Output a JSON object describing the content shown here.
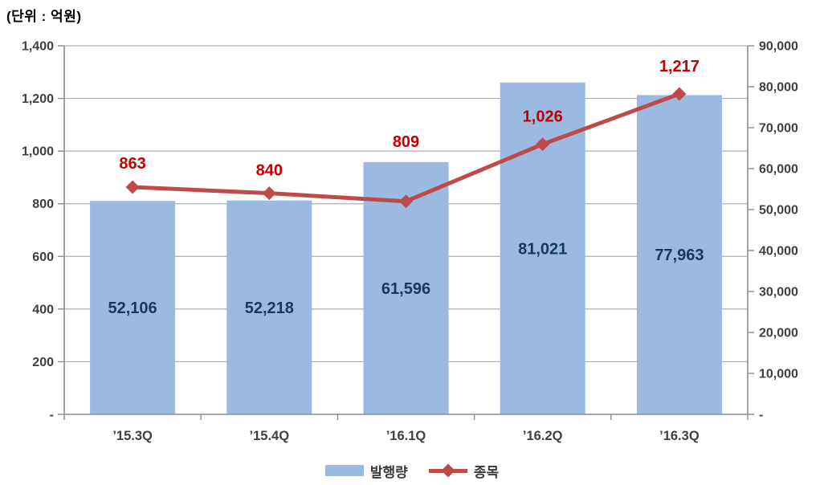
{
  "unit_label": "(단위 : 억원)",
  "colors": {
    "bar_fill": "#9ABAE2",
    "bar_label": "#17375E",
    "line": "#BE4B48",
    "line_label": "#C00000",
    "axis_line": "#8C8C8C",
    "gridline": "#AFAFAF",
    "axis_text": "#404040"
  },
  "chart_data": {
    "type": "combo",
    "title": "",
    "unit_note": "(단위 : 억원)",
    "categories": [
      "’15.3Q",
      "’15.4Q",
      "’16.1Q",
      "’16.2Q",
      "’16.3Q"
    ],
    "series": [
      {
        "name": "발행량",
        "type": "bar",
        "axis": "right",
        "values": [
          52106,
          52218,
          61596,
          81021,
          77963
        ],
        "labels": [
          "52,106",
          "52,218",
          "61,596",
          "81,021",
          "77,963"
        ]
      },
      {
        "name": "종목",
        "type": "line",
        "axis": "left",
        "values": [
          863,
          840,
          809,
          1026,
          1217
        ],
        "labels": [
          "863",
          "840",
          "809",
          "1,026",
          "1,217"
        ],
        "label_dy": [
          -23,
          -22,
          -68,
          -28,
          -28
        ]
      }
    ],
    "left_axis": {
      "min": 0,
      "max": 1400,
      "step": 200,
      "labels": [
        "-",
        "200",
        "400",
        "600",
        "800",
        "1,000",
        "1,200",
        "1,400"
      ]
    },
    "right_axis": {
      "min": 0,
      "max": 90000,
      "step": 10000,
      "labels": [
        "-",
        "10,000",
        "20,000",
        "30,000",
        "40,000",
        "50,000",
        "60,000",
        "70,000",
        "80,000",
        "90,000"
      ]
    },
    "grid": true,
    "legend_position": "bottom"
  },
  "legend": {
    "items": [
      {
        "label": "발행량",
        "series": "bar"
      },
      {
        "label": "종목",
        "series": "line"
      }
    ]
  }
}
